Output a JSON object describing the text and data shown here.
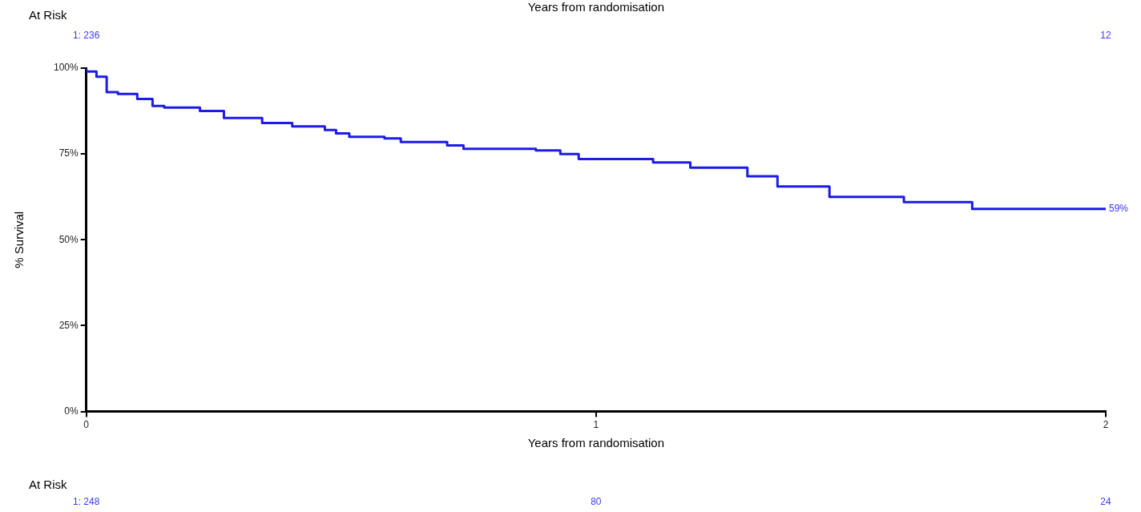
{
  "chart_data": {
    "type": "step",
    "title": "Years from randomisation",
    "xlabel": "Years from randomisation",
    "ylabel": "% Survival",
    "x": [
      0,
      0.02,
      0.04,
      0.062,
      0.1,
      0.13,
      0.153,
      0.223,
      0.27,
      0.345,
      0.404,
      0.468,
      0.49,
      0.516,
      0.585,
      0.617,
      0.708,
      0.74,
      0.882,
      0.93,
      0.966,
      1.112,
      1.185,
      1.297,
      1.356,
      1.458,
      1.604,
      1.738,
      1.8,
      2
    ],
    "series": [
      {
        "color": "#1c1ce6",
        "values": [
          100,
          99,
          97.5,
          93,
          92.5,
          91,
          89,
          88.5,
          87.5,
          85.5,
          84,
          83,
          82,
          81,
          80,
          79.5,
          78.5,
          77.5,
          76.5,
          76,
          75,
          73.5,
          72.5,
          71,
          68.5,
          65.5,
          62.5,
          61,
          59,
          59
        ]
      }
    ],
    "xlim": [
      0,
      2
    ],
    "xticks": [
      0,
      1,
      2
    ],
    "ylim": [
      0,
      100
    ],
    "yticks": [
      {
        "value": 0,
        "label": "0%"
      },
      {
        "value": 25,
        "label": "25%"
      },
      {
        "value": 50,
        "label": "50%"
      },
      {
        "value": 75,
        "label": "75%"
      },
      {
        "value": 100,
        "label": "100%"
      }
    ],
    "grid": false,
    "legend": false,
    "marker": "none",
    "line_style": "solid",
    "annotations": [
      "At Risk",
      "1: 236",
      "12",
      "At Risk",
      "1: 248",
      "80",
      "24",
      {
        "text": "59%",
        "x": 2,
        "y": 59
      }
    ]
  }
}
